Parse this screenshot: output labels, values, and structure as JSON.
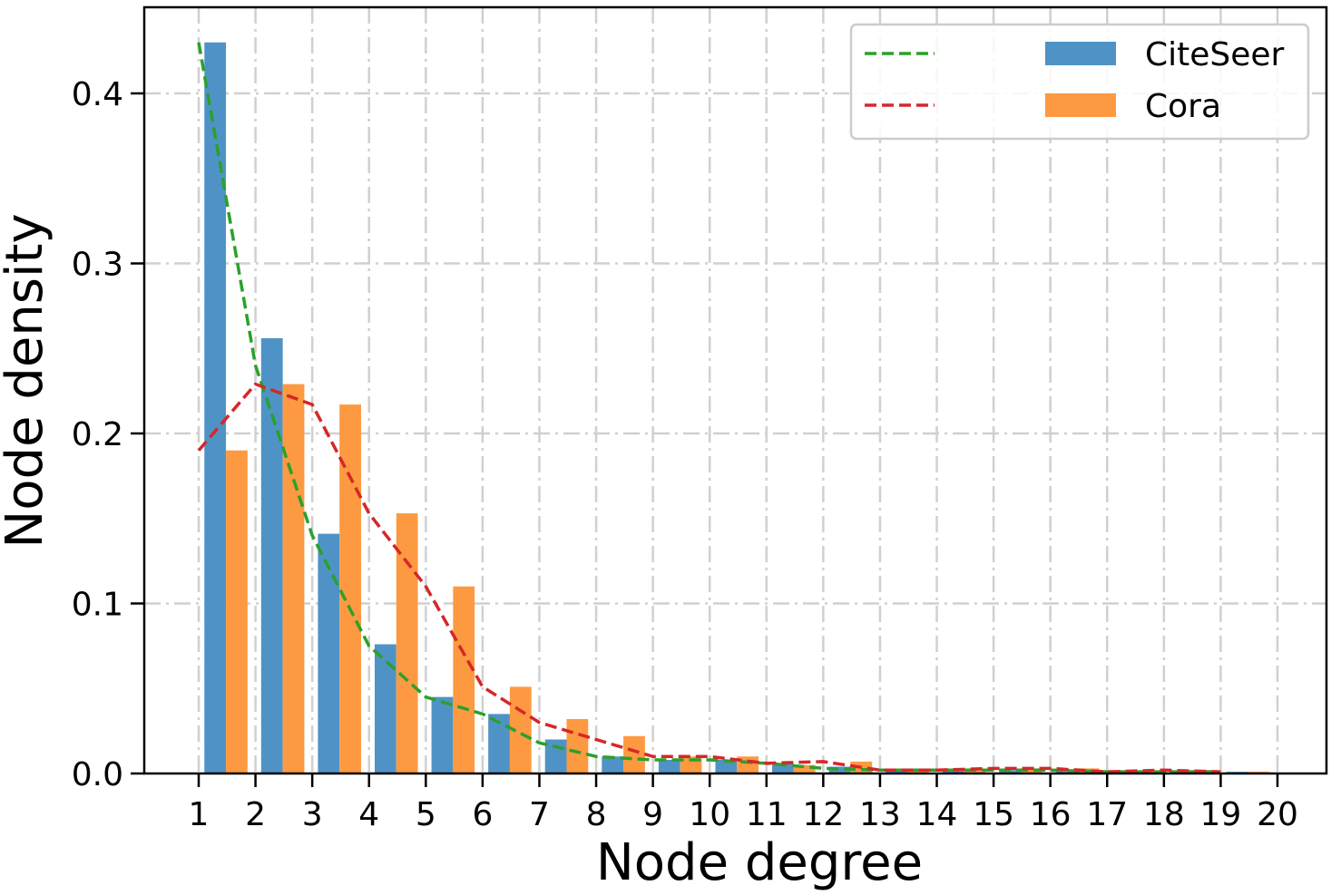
{
  "chart_data": {
    "type": "bar",
    "title": "",
    "xlabel": "Node degree",
    "ylabel": "Node density",
    "categories": [
      "1",
      "2",
      "3",
      "4",
      "5",
      "6",
      "7",
      "8",
      "9",
      "10",
      "11",
      "12",
      "13",
      "14",
      "15",
      "16",
      "17",
      "18",
      "19",
      "20"
    ],
    "ylim": [
      0,
      0.45
    ],
    "yticks": [
      "0.0",
      "0.1",
      "0.2",
      "0.3",
      "0.4"
    ],
    "grid": true,
    "legend_position": "top-right",
    "series": [
      {
        "name": "CiteSeer",
        "color": "#4f93c6",
        "values": [
          0.43,
          0.256,
          0.141,
          0.076,
          0.045,
          0.035,
          0.02,
          0.01,
          0.008,
          0.008,
          0.006,
          0.004,
          0.002,
          0.002,
          0.002,
          0.002,
          0.001,
          0.001,
          0.001,
          0
        ]
      },
      {
        "name": "Cora",
        "color": "#fd9a41",
        "values": [
          0.19,
          0.229,
          0.217,
          0.153,
          0.11,
          0.051,
          0.032,
          0.022,
          0.01,
          0.01,
          0.005,
          0.007,
          0.002,
          0.002,
          0.003,
          0.003,
          0.001,
          0.002,
          0.001,
          0
        ]
      }
    ],
    "lines": [
      {
        "name": "CiteSeer trend",
        "color": "#2ca02c",
        "style": "dashed",
        "values": [
          0.43,
          0.24,
          0.14,
          0.075,
          0.045,
          0.035,
          0.018,
          0.01,
          0.008,
          0.008,
          0.006,
          0.003,
          0.002,
          0.002,
          0.002,
          0.002,
          0.001,
          0.001,
          0.001
        ]
      },
      {
        "name": "Cora trend",
        "color": "#d62728",
        "style": "dashed",
        "values": [
          0.19,
          0.229,
          0.217,
          0.153,
          0.11,
          0.051,
          0.03,
          0.02,
          0.01,
          0.01,
          0.006,
          0.007,
          0.002,
          0.002,
          0.003,
          0.003,
          0.001,
          0.002,
          0.001
        ]
      }
    ]
  }
}
